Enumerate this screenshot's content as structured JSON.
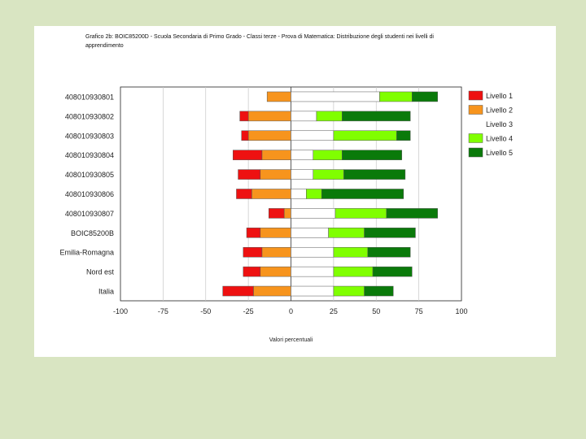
{
  "chart_data": {
    "type": "bar",
    "subtype": "diverging-stacked-horizontal",
    "title": "Grafico 2b: BOIC85200D - Scuola Secondaria di Primo Grado - Classi terze - Prova di Matematica: Distribuzione degli studenti nei livelli di apprendimento",
    "xlabel": "Valori percentuali",
    "ylabel": "",
    "xlim": [
      -100,
      100
    ],
    "x_ticks": [
      "-100",
      "-75",
      "-50",
      "-25",
      "0",
      "25",
      "50",
      "75",
      "100"
    ],
    "grid": "vertical",
    "legend_position": "right",
    "categories": [
      "408010930801",
      "408010930802",
      "408010930803",
      "408010930804",
      "408010930805",
      "408010930806",
      "408010930807",
      "BOIC85200B",
      "Emilia-Romagna",
      "Nord est",
      "Italia"
    ],
    "series": [
      {
        "name": "Livello 1",
        "color": "#ee1111",
        "side": "negative",
        "values": [
          0,
          5,
          4,
          17,
          13,
          9,
          9,
          8,
          11,
          10,
          18
        ]
      },
      {
        "name": "Livello 2",
        "color": "#f7941d",
        "side": "negative",
        "values": [
          14,
          25,
          25,
          17,
          18,
          23,
          4,
          18,
          17,
          18,
          22
        ]
      },
      {
        "name": "Livello 3",
        "color": "#ffffff",
        "side": "positive",
        "values": [
          52,
          15,
          25,
          13,
          13,
          9,
          26,
          22,
          25,
          25,
          25
        ]
      },
      {
        "name": "Livello 4",
        "color": "#80ff00",
        "side": "positive",
        "values": [
          19,
          15,
          37,
          17,
          18,
          9,
          30,
          21,
          20,
          23,
          18
        ]
      },
      {
        "name": "Livello 5",
        "color": "#0a7a0a",
        "side": "positive",
        "values": [
          15,
          40,
          8,
          35,
          36,
          48,
          30,
          30,
          25,
          23,
          17
        ]
      }
    ]
  }
}
